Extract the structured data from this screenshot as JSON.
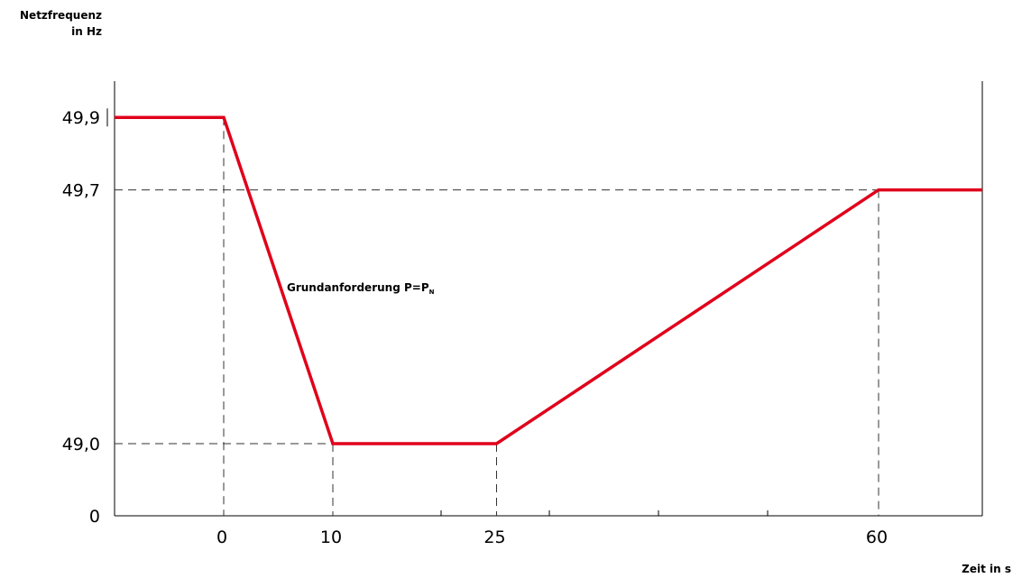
{
  "chart_data": {
    "type": "line",
    "ylabel_lines": [
      "Netzfrequenz",
      "in Hz"
    ],
    "xlabel": "Zeit in s",
    "x_ticks": [
      0,
      10,
      25,
      60
    ],
    "x_tick_labels": [
      "0",
      "10",
      "25",
      "60"
    ],
    "y_ticks": [
      0,
      49.0,
      49.7,
      49.9
    ],
    "y_tick_labels": [
      "0",
      "49,0",
      "49,7",
      "49,9"
    ],
    "annotation": {
      "text": "Grundanforderung P=P",
      "subscript": "N"
    },
    "series": [
      {
        "x": [
          -10,
          0,
          10,
          25,
          60,
          70
        ],
        "y": [
          49.9,
          49.9,
          49.0,
          49.0,
          49.7,
          49.7
        ],
        "color": "#e0001b"
      }
    ],
    "grid": false
  }
}
